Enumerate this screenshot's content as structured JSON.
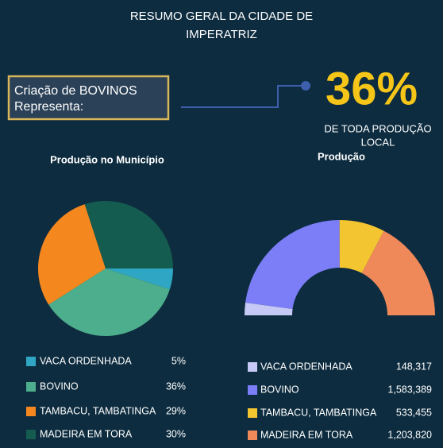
{
  "header": {
    "title_lines": [
      "RESUMO GERAL DA CIDADE DE",
      "IMPERATRIZ"
    ]
  },
  "callout": {
    "label_lines": [
      "Criação de BOVINOS",
      "Representa:"
    ],
    "figure": "36%",
    "caption_lines": [
      "DE TODA PRODUÇÃO",
      "LOCAL"
    ]
  },
  "chart_data": [
    {
      "type": "pie",
      "title": "Produção no Município",
      "categories": [
        "VACA ORDENHADA",
        "BOVINO",
        "TAMBACU, TAMBATINGA",
        "MADEIRA EM TORA"
      ],
      "values": [
        5,
        36,
        29,
        30
      ],
      "value_labels": [
        "5%",
        "36%",
        "29%",
        "30%"
      ],
      "colors": [
        "#2ea6c4",
        "#4cae8c",
        "#f5871f",
        "#155c50"
      ]
    },
    {
      "type": "donut",
      "title": "Produção",
      "categories": [
        "VACA ORDENHADA",
        "BOVINO",
        "TAMBACU, TAMBATINGA",
        "MADEIRA EM TORA"
      ],
      "values": [
        148317,
        1583389,
        533455,
        1203820
      ],
      "value_labels": [
        "148,317",
        "1,583,389",
        "533,455",
        "1,203,820"
      ],
      "colors": [
        "#c6c9f6",
        "#7b7ef6",
        "#f3c531",
        "#f0895a"
      ]
    }
  ]
}
